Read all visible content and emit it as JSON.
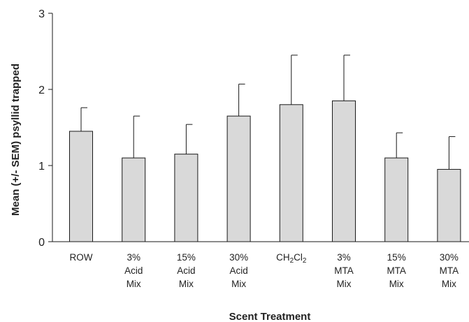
{
  "chart_data": {
    "type": "bar",
    "title": "",
    "xlabel": "Scent Treatment",
    "ylabel": "Mean (+/- SEM) psyllid trapped",
    "ylim": [
      0,
      3
    ],
    "yticks": [
      "0",
      "1",
      "2",
      "3"
    ],
    "grid": false,
    "categories": [
      [
        "ROW"
      ],
      [
        "3%",
        "Acid",
        "Mix"
      ],
      [
        "15%",
        "Acid",
        "Mix"
      ],
      [
        "30%",
        "Acid",
        "Mix"
      ],
      [
        "CH2Cl2"
      ],
      [
        "3%",
        "MTA",
        "Mix"
      ],
      [
        "15%",
        "MTA",
        "Mix"
      ],
      [
        "30%",
        "MTA",
        "Mix"
      ]
    ],
    "values": [
      1.45,
      1.1,
      1.15,
      1.65,
      1.8,
      1.85,
      1.1,
      0.95
    ],
    "error_upper": [
      0.31,
      0.55,
      0.39,
      0.42,
      0.65,
      0.6,
      0.33,
      0.43
    ],
    "colors": {
      "bar_fill": "#d9d9d9",
      "bar_stroke": "#1a1a1a",
      "axis": "#1a1a1a"
    }
  }
}
